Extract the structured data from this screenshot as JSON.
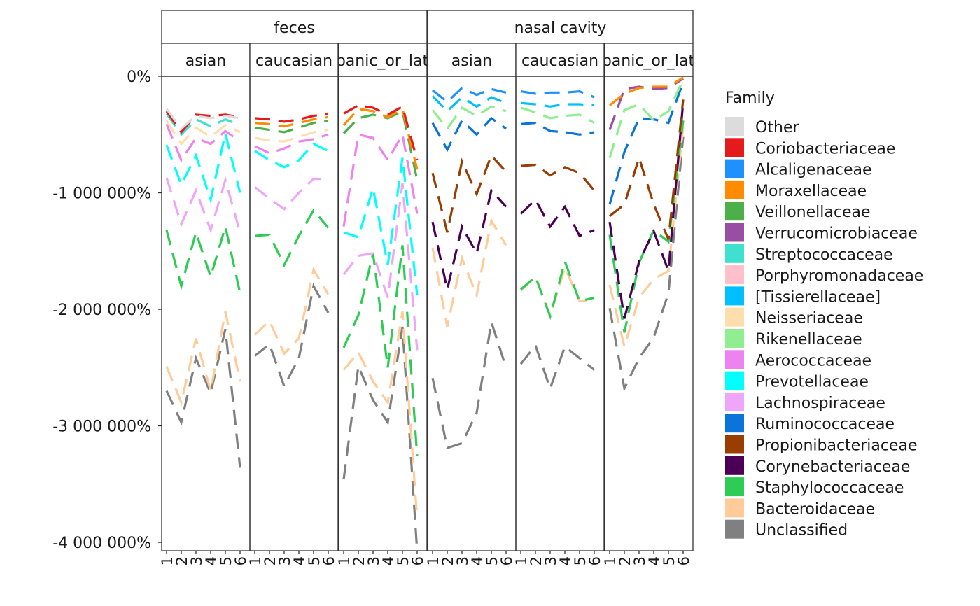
{
  "chart_data": {
    "type": "line",
    "title": "",
    "xlabel": "",
    "ylabel": "",
    "ylim": [
      -4070000,
      0
    ],
    "yticks": [
      {
        "value": 0,
        "label": "0%"
      },
      {
        "value": -1000000,
        "label": "-1 000 000%"
      },
      {
        "value": -2000000,
        "label": "-2 000 000%"
      },
      {
        "value": -3000000,
        "label": "-3 000 000%"
      },
      {
        "value": -4000000,
        "label": "-4 000 000%"
      }
    ],
    "x_tick_labels": [
      "1",
      "2",
      "3",
      "4",
      "5",
      "6"
    ],
    "facet_rows": [
      "feces",
      "nasal cavity"
    ],
    "facet_cols": [
      "asian",
      "caucasian",
      "hispanic_or_latino"
    ],
    "legend": {
      "title": "Family",
      "position": "right",
      "entries": [
        {
          "name": "Other",
          "color": "#DCDCDC"
        },
        {
          "name": "Coriobacteriaceae",
          "color": "#E41A1C"
        },
        {
          "name": "Alcaligenaceae",
          "color": "#1E90FF"
        },
        {
          "name": "Moraxellaceae",
          "color": "#FF8C00"
        },
        {
          "name": "Veillonellaceae",
          "color": "#4DAF4A"
        },
        {
          "name": "Verrucomicrobiaceae",
          "color": "#984EA3"
        },
        {
          "name": "Streptococcaceae",
          "color": "#40E0D0"
        },
        {
          "name": "Porphyromonadaceae",
          "color": "#FFC0CB"
        },
        {
          "name": "[Tissierellaceae]",
          "color": "#00BFFF"
        },
        {
          "name": "Neisseriaceae",
          "color": "#FFDEAD"
        },
        {
          "name": "Rikenellaceae",
          "color": "#90EE90"
        },
        {
          "name": "Aerococcaceae",
          "color": "#EE82EE"
        },
        {
          "name": "Prevotellaceae",
          "color": "#00FFFF"
        },
        {
          "name": "Lachnospiraceae",
          "color": "#F0A6F8"
        },
        {
          "name": "Ruminococcaceae",
          "color": "#0A74DA"
        },
        {
          "name": "Propionibacteriaceae",
          "color": "#993D00"
        },
        {
          "name": "Corynebacteriaceae",
          "color": "#4B0055"
        },
        {
          "name": "Staphylococcaceae",
          "color": "#2ECC55"
        },
        {
          "name": "Bacteroidaceae",
          "color": "#FFCC99"
        },
        {
          "name": "Unclassified",
          "color": "#808080"
        }
      ]
    },
    "panels": [
      {
        "row": "feces",
        "col": "asian",
        "series": [
          {
            "name": "Unclassified",
            "values": [
              -2700000,
              -2970000,
              -2420000,
              -2720000,
              -2170000,
              -3360000
            ]
          },
          {
            "name": "Bacteroidaceae",
            "values": [
              -2490000,
              -2800000,
              -2250000,
              -2700000,
              -2020000,
              -2620000
            ]
          },
          {
            "name": "Staphylococcaceae",
            "values": [
              -1320000,
              -1800000,
              -1340000,
              -1720000,
              -1290000,
              -1860000
            ]
          },
          {
            "name": "Lachnospiraceae",
            "values": [
              -870000,
              -1270000,
              -980000,
              -1320000,
              -890000,
              -1340000
            ]
          },
          {
            "name": "Prevotellaceae",
            "values": [
              -590000,
              -930000,
              -680000,
              -1060000,
              -490000,
              -1000000
            ]
          },
          {
            "name": "Aerococcaceae",
            "values": [
              -410000,
              -720000,
              -530000,
              -580000,
              -470000,
              -560000
            ]
          },
          {
            "name": "Neisseriaceae",
            "values": [
              -380000,
              -580000,
              -440000,
              -520000,
              -420000,
              -480000
            ]
          },
          {
            "name": "Streptococcaceae",
            "values": [
              -320000,
              -500000,
              -370000,
              -430000,
              -370000,
              -420000
            ]
          },
          {
            "name": "Coriobacteriaceae",
            "values": [
              -300000,
              -480000,
              -330000,
              -340000,
              -330000,
              -350000
            ]
          },
          {
            "name": "Other",
            "values": [
              -280000,
              -450000,
              -340000,
              -360000,
              -340000,
              -360000
            ]
          }
        ]
      },
      {
        "row": "feces",
        "col": "caucasian",
        "series": [
          {
            "name": "Unclassified",
            "values": [
              -2400000,
              -2300000,
              -2660000,
              -2420000,
              -1800000,
              -2030000
            ]
          },
          {
            "name": "Bacteroidaceae",
            "values": [
              -2220000,
              -2100000,
              -2380000,
              -2250000,
              -1660000,
              -1870000
            ]
          },
          {
            "name": "Staphylococcaceae",
            "values": [
              -1370000,
              -1360000,
              -1620000,
              -1370000,
              -1150000,
              -1300000
            ]
          },
          {
            "name": "Lachnospiraceae",
            "values": [
              -950000,
              -1050000,
              -1140000,
              -1000000,
              -880000,
              -880000
            ]
          },
          {
            "name": "Prevotellaceae",
            "values": [
              -640000,
              -720000,
              -780000,
              -720000,
              -580000,
              -640000
            ]
          },
          {
            "name": "Aerococcaceae",
            "values": [
              -600000,
              -660000,
              -620000,
              -560000,
              -540000,
              -500000
            ]
          },
          {
            "name": "Neisseriaceae",
            "values": [
              -530000,
              -550000,
              -560000,
              -520000,
              -480000,
              -460000
            ]
          },
          {
            "name": "Veillonellaceae",
            "values": [
              -440000,
              -460000,
              -480000,
              -440000,
              -400000,
              -380000
            ]
          },
          {
            "name": "Moraxellaceae",
            "values": [
              -400000,
              -410000,
              -430000,
              -400000,
              -370000,
              -350000
            ]
          },
          {
            "name": "Coriobacteriaceae",
            "values": [
              -360000,
              -370000,
              -390000,
              -370000,
              -340000,
              -320000
            ]
          }
        ]
      },
      {
        "row": "feces",
        "col": "hispanic_or_latino",
        "series": [
          {
            "name": "Unclassified",
            "values": [
              -3460000,
              -2490000,
              -2780000,
              -2970000,
              -2150000,
              -4080000
            ]
          },
          {
            "name": "Bacteroidaceae",
            "values": [
              -2520000,
              -2370000,
              -2620000,
              -2800000,
              -2020000,
              -3800000
            ]
          },
          {
            "name": "Staphylococcaceae",
            "values": [
              -2330000,
              -2050000,
              -1520000,
              -2500000,
              -1450000,
              -3260000
            ]
          },
          {
            "name": "Lachnospiraceae",
            "values": [
              -1700000,
              -1540000,
              -1520000,
              -1900000,
              -920000,
              -2350000
            ]
          },
          {
            "name": "Prevotellaceae",
            "values": [
              -1340000,
              -1380000,
              -960000,
              -1620000,
              -700000,
              -1880000
            ]
          },
          {
            "name": "Aerococcaceae",
            "values": [
              -1290000,
              -500000,
              -530000,
              -720000,
              -500000,
              -1180000
            ]
          },
          {
            "name": "Veillonellaceae",
            "values": [
              -490000,
              -360000,
              -330000,
              -360000,
              -300000,
              -890000
            ]
          },
          {
            "name": "Moraxellaceae",
            "values": [
              -420000,
              -280000,
              -300000,
              -350000,
              -280000,
              -800000
            ]
          },
          {
            "name": "Coriobacteriaceae",
            "values": [
              -320000,
              -250000,
              -270000,
              -330000,
              -260000,
              -720000
            ]
          }
        ]
      },
      {
        "row": "nasal cavity",
        "col": "asian",
        "series": [
          {
            "name": "Unclassified",
            "values": [
              -2590000,
              -3190000,
              -3150000,
              -2890000,
              -2110000,
              -2500000
            ]
          },
          {
            "name": "Bacteroidaceae",
            "values": [
              -1470000,
              -2150000,
              -1560000,
              -1880000,
              -1240000,
              -1450000
            ]
          },
          {
            "name": "Corynebacteriaceae",
            "values": [
              -1250000,
              -1830000,
              -1290000,
              -1520000,
              -980000,
              -1120000
            ]
          },
          {
            "name": "Propionibacteriaceae",
            "values": [
              -830000,
              -1340000,
              -730000,
              -1010000,
              -680000,
              -820000
            ]
          },
          {
            "name": "Ruminococcaceae",
            "values": [
              -400000,
              -630000,
              -380000,
              -500000,
              -360000,
              -450000
            ]
          },
          {
            "name": "Rikenellaceae",
            "values": [
              -290000,
              -450000,
              -270000,
              -340000,
              -260000,
              -300000
            ]
          },
          {
            "name": "[Tissierellaceae]",
            "values": [
              -170000,
              -300000,
              -180000,
              -260000,
              -180000,
              -230000
            ]
          },
          {
            "name": "Alcaligenaceae",
            "values": [
              -120000,
              -220000,
              -100000,
              -160000,
              -110000,
              -140000
            ]
          }
        ]
      },
      {
        "row": "nasal cavity",
        "col": "caucasian",
        "series": [
          {
            "name": "Unclassified",
            "values": [
              -2470000,
              -2310000,
              -2680000,
              -2320000,
              -2420000,
              -2520000
            ]
          },
          {
            "name": "Bacteroidaceae",
            "values": [
              -1840000,
              -1720000,
              -2060000,
              -1640000,
              -1930000,
              -1920000
            ]
          },
          {
            "name": "Staphylococcaceae",
            "values": [
              -1830000,
              -1720000,
              -2060000,
              -1590000,
              -1930000,
              -1900000
            ]
          },
          {
            "name": "Corynebacteriaceae",
            "values": [
              -1180000,
              -1060000,
              -1290000,
              -1120000,
              -1370000,
              -1320000
            ]
          },
          {
            "name": "Propionibacteriaceae",
            "values": [
              -770000,
              -760000,
              -850000,
              -780000,
              -830000,
              -980000
            ]
          },
          {
            "name": "Ruminococcaceae",
            "values": [
              -410000,
              -400000,
              -470000,
              -480000,
              -500000,
              -480000
            ]
          },
          {
            "name": "Rikenellaceae",
            "values": [
              -270000,
              -310000,
              -360000,
              -340000,
              -330000,
              -400000
            ]
          },
          {
            "name": "[Tissierellaceae]",
            "values": [
              -230000,
              -240000,
              -260000,
              -240000,
              -240000,
              -250000
            ]
          },
          {
            "name": "Alcaligenaceae",
            "values": [
              -130000,
              -150000,
              -140000,
              -140000,
              -130000,
              -180000
            ]
          }
        ]
      },
      {
        "row": "nasal cavity",
        "col": "hispanic_or_latino",
        "series": [
          {
            "name": "Unclassified",
            "values": [
              -1990000,
              -2680000,
              -2420000,
              -2240000,
              -1860000,
              -520000
            ]
          },
          {
            "name": "Bacteroidaceae",
            "values": [
              -1790000,
              -2320000,
              -1900000,
              -1740000,
              -1670000,
              -430000
            ]
          },
          {
            "name": "Staphylococcaceae",
            "values": [
              -1360000,
              -2200000,
              -1600000,
              -1320000,
              -1420000,
              -380000
            ]
          },
          {
            "name": "Corynebacteriaceae",
            "values": [
              -1250000,
              -2080000,
              -1590000,
              -1330000,
              -1670000,
              -220000
            ]
          },
          {
            "name": "Propionibacteriaceae",
            "values": [
              -1200000,
              -1100000,
              -700000,
              -1100000,
              -1400000,
              -200000
            ]
          },
          {
            "name": "Ruminococcaceae",
            "values": [
              -1100000,
              -650000,
              -360000,
              -370000,
              -400000,
              -50000
            ]
          },
          {
            "name": "Rikenellaceae",
            "values": [
              -700000,
              -290000,
              -240000,
              -380000,
              -300000,
              -30000
            ]
          },
          {
            "name": "Verrucomicrobiaceae",
            "values": [
              -460000,
              -110000,
              -90000,
              -110000,
              -100000,
              -20000
            ]
          },
          {
            "name": "Moraxellaceae",
            "values": [
              -250000,
              -150000,
              -100000,
              -90000,
              -90000,
              -10000
            ]
          }
        ]
      }
    ]
  }
}
